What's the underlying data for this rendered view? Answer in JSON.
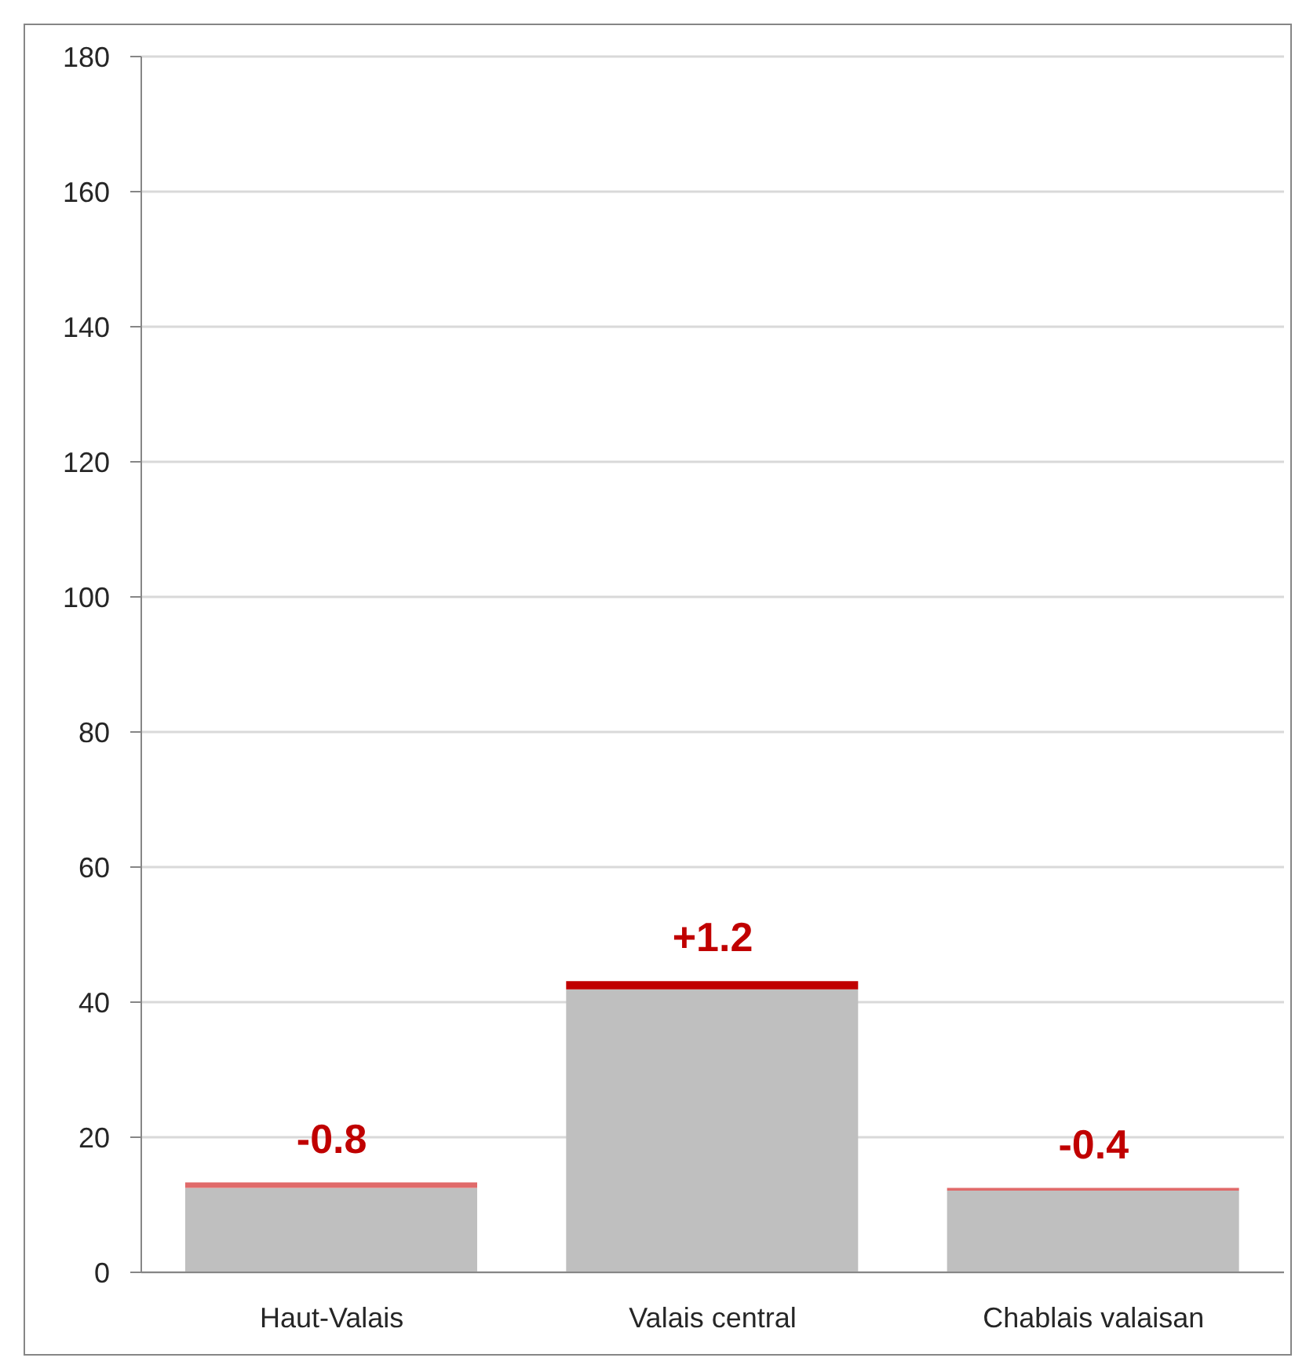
{
  "chart_data": {
    "type": "bar",
    "stacked": true,
    "categories": [
      "Haut-Valais",
      "Valais central",
      "Chablais valaisan"
    ],
    "series": [
      {
        "color": "#bfbfbf",
        "values": [
          12.5,
          41.9,
          12.1
        ]
      },
      {
        "color": "#c00000",
        "colors": [
          "#e06a6a",
          "#c00000",
          "#e06a6a"
        ],
        "values": [
          0.8,
          1.2,
          0.4
        ]
      }
    ],
    "annotations": [
      {
        "text": "-0.8",
        "x": "Haut-Valais",
        "y": 13.3
      },
      {
        "text": "+1.2",
        "x": "Valais central",
        "y": 43.1
      },
      {
        "text": "-0.4",
        "x": "Chablais valaisan",
        "y": 12.5
      }
    ],
    "ylim": [
      0,
      180
    ],
    "yticks": [
      0,
      20,
      40,
      60,
      80,
      100,
      120,
      140,
      160,
      180
    ],
    "grid": "y"
  }
}
